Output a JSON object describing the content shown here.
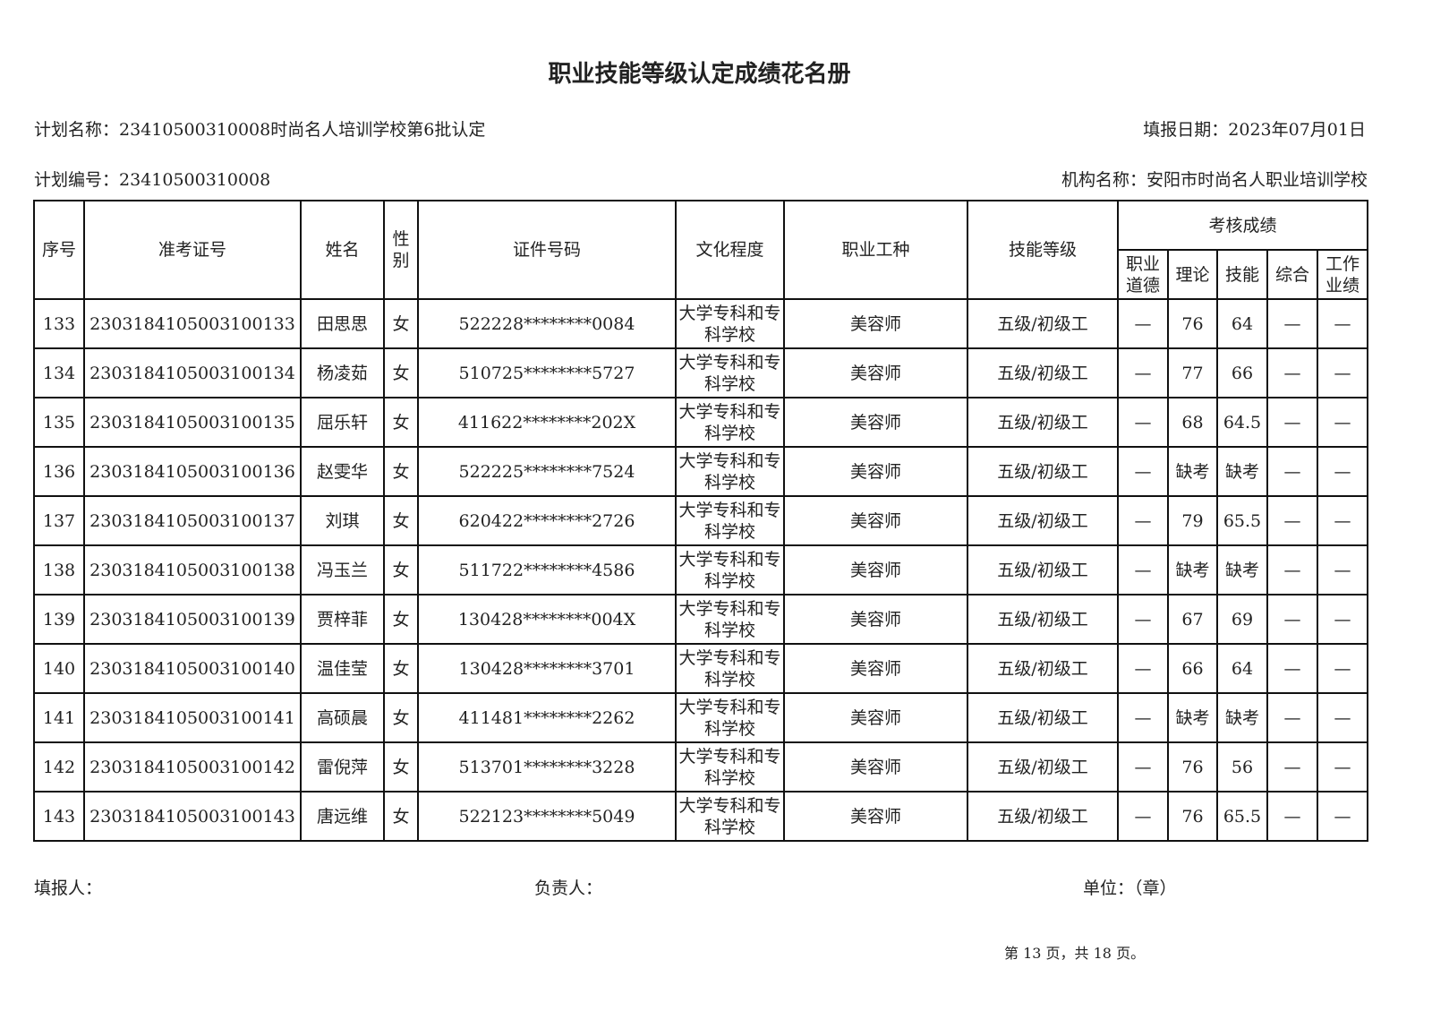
{
  "title": "职业技能等级认定成绩花名册",
  "plan_name": "计划名称：23410500310008时尚名人培训学校第6批认定",
  "fill_date": "填报日期：2023年07月01日",
  "plan_no": "计划编号：23410500310008",
  "org_name": "机构名称：安阳市时尚名人职业培训学校",
  "headers": {
    "seq": "序号",
    "ticket": "准考证号",
    "name": "姓名",
    "gender": "性别",
    "id": "证件号码",
    "edu": "文化程度",
    "job": "职业工种",
    "level": "技能等级",
    "scores": "考核成绩",
    "ethics": "职业道德",
    "theory": "理论",
    "skill": "技能",
    "overall": "综合",
    "work": "工作业绩"
  },
  "rows": [
    {
      "seq": "133",
      "ticket": "2303184105003100133",
      "name": "田思思",
      "gender": "女",
      "id": "522228********0084",
      "edu": "大学专科和专科学校",
      "job": "美容师",
      "level": "五级/初级工",
      "ethics": "—",
      "theory": "76",
      "skill": "64",
      "overall": "—",
      "work": "—"
    },
    {
      "seq": "134",
      "ticket": "2303184105003100134",
      "name": "杨凌茹",
      "gender": "女",
      "id": "510725********5727",
      "edu": "大学专科和专科学校",
      "job": "美容师",
      "level": "五级/初级工",
      "ethics": "—",
      "theory": "77",
      "skill": "66",
      "overall": "—",
      "work": "—"
    },
    {
      "seq": "135",
      "ticket": "2303184105003100135",
      "name": "屈乐轩",
      "gender": "女",
      "id": "411622********202X",
      "edu": "大学专科和专科学校",
      "job": "美容师",
      "level": "五级/初级工",
      "ethics": "—",
      "theory": "68",
      "skill": "64.5",
      "overall": "—",
      "work": "—"
    },
    {
      "seq": "136",
      "ticket": "2303184105003100136",
      "name": "赵雯华",
      "gender": "女",
      "id": "522225********7524",
      "edu": "大学专科和专科学校",
      "job": "美容师",
      "level": "五级/初级工",
      "ethics": "—",
      "theory": "缺考",
      "skill": "缺考",
      "overall": "—",
      "work": "—"
    },
    {
      "seq": "137",
      "ticket": "2303184105003100137",
      "name": "刘琪",
      "gender": "女",
      "id": "620422********2726",
      "edu": "大学专科和专科学校",
      "job": "美容师",
      "level": "五级/初级工",
      "ethics": "—",
      "theory": "79",
      "skill": "65.5",
      "overall": "—",
      "work": "—"
    },
    {
      "seq": "138",
      "ticket": "2303184105003100138",
      "name": "冯玉兰",
      "gender": "女",
      "id": "511722********4586",
      "edu": "大学专科和专科学校",
      "job": "美容师",
      "level": "五级/初级工",
      "ethics": "—",
      "theory": "缺考",
      "skill": "缺考",
      "overall": "—",
      "work": "—"
    },
    {
      "seq": "139",
      "ticket": "2303184105003100139",
      "name": "贾梓菲",
      "gender": "女",
      "id": "130428********004X",
      "edu": "大学专科和专科学校",
      "job": "美容师",
      "level": "五级/初级工",
      "ethics": "—",
      "theory": "67",
      "skill": "69",
      "overall": "—",
      "work": "—"
    },
    {
      "seq": "140",
      "ticket": "2303184105003100140",
      "name": "温佳莹",
      "gender": "女",
      "id": "130428********3701",
      "edu": "大学专科和专科学校",
      "job": "美容师",
      "level": "五级/初级工",
      "ethics": "—",
      "theory": "66",
      "skill": "64",
      "overall": "—",
      "work": "—"
    },
    {
      "seq": "141",
      "ticket": "2303184105003100141",
      "name": "高硕晨",
      "gender": "女",
      "id": "411481********2262",
      "edu": "大学专科和专科学校",
      "job": "美容师",
      "level": "五级/初级工",
      "ethics": "—",
      "theory": "缺考",
      "skill": "缺考",
      "overall": "—",
      "work": "—"
    },
    {
      "seq": "142",
      "ticket": "2303184105003100142",
      "name": "雷倪萍",
      "gender": "女",
      "id": "513701********3228",
      "edu": "大学专科和专科学校",
      "job": "美容师",
      "level": "五级/初级工",
      "ethics": "—",
      "theory": "76",
      "skill": "56",
      "overall": "—",
      "work": "—"
    },
    {
      "seq": "143",
      "ticket": "2303184105003100143",
      "name": "唐远维",
      "gender": "女",
      "id": "522123********5049",
      "edu": "大学专科和专科学校",
      "job": "美容师",
      "level": "五级/初级工",
      "ethics": "—",
      "theory": "76",
      "skill": "65.5",
      "overall": "—",
      "work": "—"
    }
  ],
  "footer": {
    "filler": "填报人：",
    "manager": "负责人：",
    "unit": "单位：（章）",
    "page": "第 13 页，共 18 页。"
  }
}
